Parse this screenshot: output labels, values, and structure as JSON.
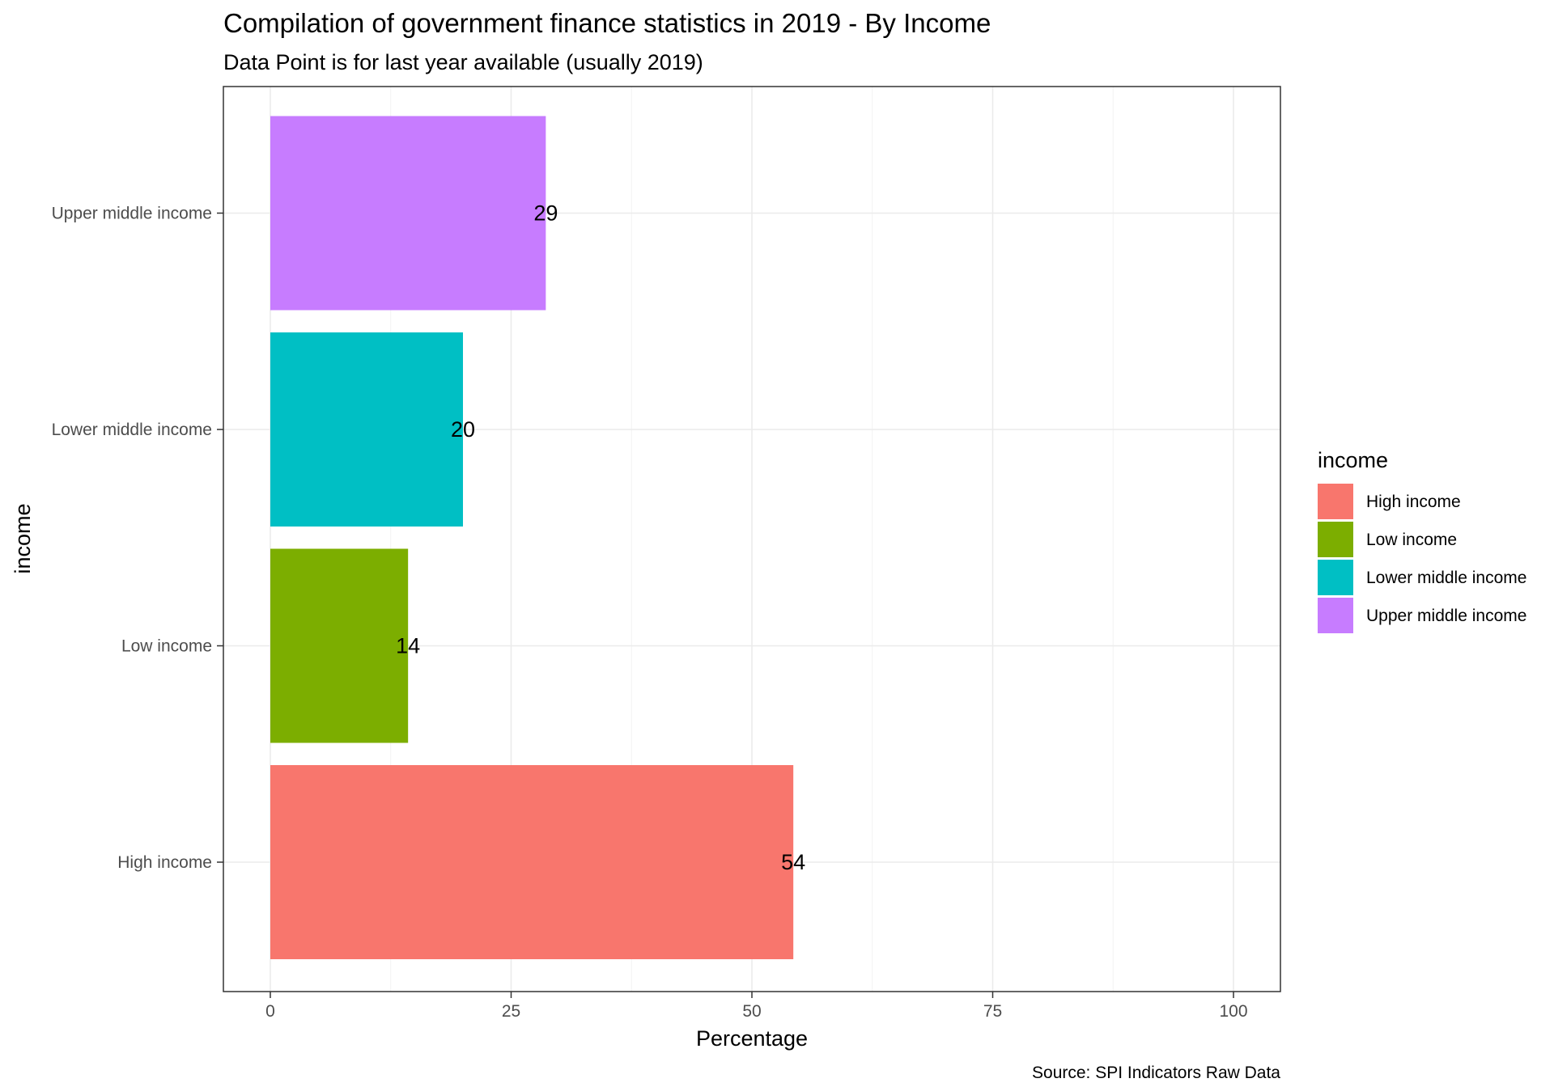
{
  "chart_data": {
    "type": "bar",
    "orientation": "horizontal",
    "title": "Compilation of government finance statistics in 2019 - By Income",
    "subtitle": "Data Point is for last year available (usually 2019)",
    "xlabel": "Percentage",
    "ylabel": "income",
    "caption": "Source: SPI Indicators Raw Data",
    "categories": [
      "High income",
      "Low income",
      "Lower middle income",
      "Upper middle income"
    ],
    "values": [
      54.3,
      14.3,
      20,
      28.6
    ],
    "data_labels": [
      "54",
      "14",
      "20",
      "29"
    ],
    "colors": [
      "#F8766D",
      "#7CAE00",
      "#00BFC4",
      "#C77CFF"
    ],
    "xlim": [
      0,
      100
    ],
    "xticks": [
      0,
      25,
      50,
      75,
      100
    ],
    "xtick_labels": [
      "0",
      "25",
      "50",
      "75",
      "100"
    ],
    "grid": true,
    "legend": {
      "title": "income",
      "position": "right",
      "entries": [
        "High income",
        "Low income",
        "Lower middle income",
        "Upper middle income"
      ]
    }
  }
}
